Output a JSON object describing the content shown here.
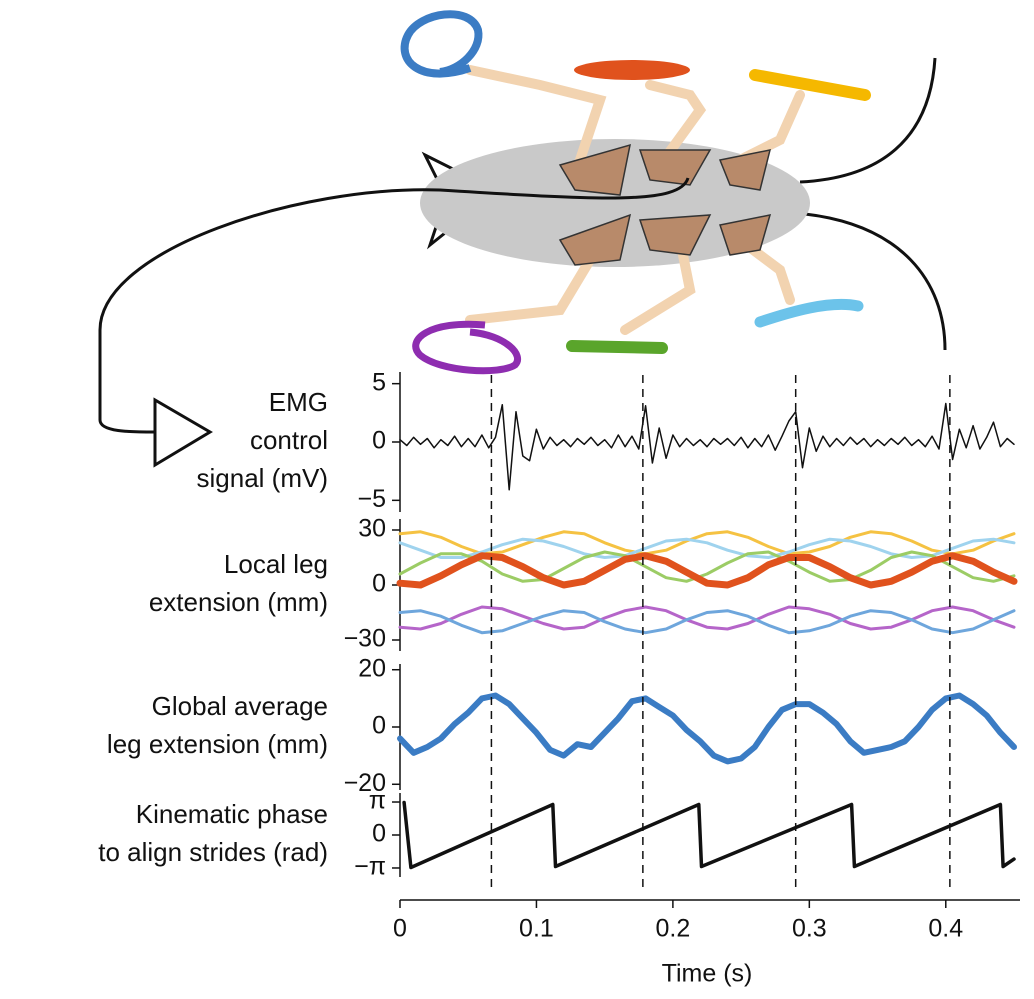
{
  "chart_data": [
    {
      "type": "line",
      "ylabel": [
        "EMG",
        "control",
        "signal (mV)"
      ],
      "xlim": [
        0,
        0.45
      ],
      "ylim": [
        -6,
        6
      ],
      "yticks": [
        5,
        0,
        {
          "value": -5,
          "label": "−5"
        }
      ],
      "x": [
        0,
        0.005,
        0.01,
        0.015,
        0.02,
        0.025,
        0.03,
        0.035,
        0.04,
        0.045,
        0.05,
        0.055,
        0.06,
        0.065,
        0.07,
        0.075,
        0.08,
        0.085,
        0.09,
        0.095,
        0.1,
        0.105,
        0.11,
        0.115,
        0.12,
        0.125,
        0.13,
        0.135,
        0.14,
        0.145,
        0.15,
        0.155,
        0.16,
        0.165,
        0.17,
        0.175,
        0.18,
        0.185,
        0.19,
        0.195,
        0.2,
        0.205,
        0.21,
        0.215,
        0.22,
        0.225,
        0.23,
        0.235,
        0.24,
        0.245,
        0.25,
        0.255,
        0.26,
        0.265,
        0.27,
        0.275,
        0.28,
        0.285,
        0.29,
        0.295,
        0.3,
        0.305,
        0.31,
        0.315,
        0.32,
        0.325,
        0.33,
        0.335,
        0.34,
        0.345,
        0.35,
        0.355,
        0.36,
        0.365,
        0.37,
        0.375,
        0.38,
        0.385,
        0.39,
        0.395,
        0.4,
        0.405,
        0.41,
        0.415,
        0.42,
        0.425,
        0.43,
        0.435,
        0.44,
        0.445,
        0.45
      ],
      "series": [
        {
          "color": "#111111",
          "linewidth": 1.5,
          "values": [
            0.2,
            -0.3,
            0.4,
            -0.2,
            0.3,
            -0.5,
            0.2,
            -0.3,
            0.5,
            -0.4,
            0.3,
            -0.4,
            0.6,
            -0.5,
            0.4,
            3.2,
            -4.1,
            2.6,
            -1.2,
            -1.6,
            1.1,
            -0.6,
            0.4,
            -0.3,
            0.2,
            -0.4,
            0.3,
            -0.2,
            0.4,
            -0.3,
            0.2,
            -0.5,
            0.6,
            -0.4,
            0.5,
            -0.6,
            3.1,
            -1.8,
            1.2,
            -1.4,
            0.6,
            -0.4,
            0.3,
            -0.3,
            0.2,
            -0.4,
            0.3,
            -0.2,
            0.3,
            -0.3,
            0.4,
            -0.5,
            0.3,
            -0.4,
            0.6,
            -0.7,
            0.5,
            1.8,
            2.6,
            -2.2,
            1.2,
            -0.8,
            0.5,
            -0.4,
            0.3,
            -0.3,
            0.4,
            -0.2,
            0.3,
            -0.4,
            0.2,
            -0.3,
            0.3,
            -0.2,
            0.4,
            -0.3,
            0.2,
            -0.4,
            0.5,
            -0.6,
            3.3,
            -1.5,
            1.1,
            -0.5,
            1.4,
            -0.6,
            0.4,
            1.7,
            -0.4,
            0.3,
            -0.2
          ]
        }
      ]
    },
    {
      "type": "line",
      "ylabel": [
        "Local leg",
        "extension (mm)"
      ],
      "xlim": [
        0,
        0.45
      ],
      "ylim": [
        -36,
        36
      ],
      "yticks": [
        30,
        0,
        {
          "value": -30,
          "label": "−30"
        }
      ],
      "x": [
        0,
        0.015,
        0.03,
        0.045,
        0.06,
        0.075,
        0.09,
        0.105,
        0.12,
        0.135,
        0.15,
        0.165,
        0.18,
        0.195,
        0.21,
        0.225,
        0.24,
        0.255,
        0.27,
        0.285,
        0.3,
        0.315,
        0.33,
        0.345,
        0.36,
        0.375,
        0.39,
        0.405,
        0.42,
        0.435,
        0.45
      ],
      "series": [
        {
          "color": "#f5c242",
          "linewidth": 3,
          "values": [
            28,
            29,
            26,
            21,
            17,
            18,
            22,
            26,
            29,
            28,
            23,
            19,
            17,
            19,
            24,
            28,
            29,
            26,
            21,
            17,
            18,
            21,
            26,
            29,
            28,
            24,
            19,
            17,
            19,
            24,
            28
          ]
        },
        {
          "color": "#9fd3ee",
          "linewidth": 3,
          "values": [
            23,
            19,
            15,
            15,
            18,
            22,
            25,
            24,
            21,
            17,
            15,
            16,
            20,
            24,
            25,
            23,
            19,
            16,
            15,
            18,
            22,
            25,
            24,
            21,
            17,
            15,
            16,
            20,
            24,
            25,
            23
          ]
        },
        {
          "color": "#9ccc65",
          "linewidth": 3,
          "values": [
            6,
            12,
            17,
            17,
            13,
            6,
            2,
            3,
            9,
            15,
            18,
            16,
            10,
            4,
            2,
            6,
            12,
            17,
            18,
            13,
            7,
            2,
            3,
            8,
            15,
            18,
            16,
            10,
            4,
            2,
            5
          ]
        },
        {
          "color": "#b565c9",
          "linewidth": 3,
          "values": [
            -23,
            -24,
            -21,
            -16,
            -12,
            -13,
            -17,
            -21,
            -24,
            -23,
            -18,
            -14,
            -12,
            -14,
            -19,
            -23,
            -24,
            -21,
            -16,
            -12,
            -13,
            -16,
            -21,
            -24,
            -23,
            -19,
            -14,
            -12,
            -14,
            -19,
            -23
          ]
        },
        {
          "color": "#6ea6dc",
          "linewidth": 3,
          "values": [
            -15,
            -14,
            -17,
            -22,
            -26,
            -25,
            -21,
            -17,
            -14,
            -15,
            -20,
            -24,
            -26,
            -24,
            -19,
            -15,
            -14,
            -17,
            -22,
            -26,
            -25,
            -22,
            -17,
            -14,
            -15,
            -19,
            -24,
            -26,
            -24,
            -19,
            -14
          ]
        },
        {
          "color": "#e0521d",
          "linewidth": 7,
          "values": [
            1,
            0,
            5,
            11,
            16,
            15,
            10,
            4,
            0,
            2,
            8,
            14,
            16,
            13,
            7,
            1,
            0,
            4,
            11,
            15,
            15,
            10,
            4,
            0,
            2,
            7,
            13,
            16,
            13,
            7,
            2
          ]
        }
      ]
    },
    {
      "type": "line",
      "ylabel": [
        "Global average",
        "leg extension (mm)"
      ],
      "xlim": [
        0,
        0.45
      ],
      "ylim": [
        -22,
        22
      ],
      "yticks": [
        20,
        0,
        {
          "value": -20,
          "label": "−20"
        }
      ],
      "x": [
        0,
        0.01,
        0.02,
        0.03,
        0.04,
        0.05,
        0.06,
        0.07,
        0.08,
        0.09,
        0.1,
        0.11,
        0.12,
        0.13,
        0.14,
        0.15,
        0.16,
        0.17,
        0.18,
        0.19,
        0.2,
        0.21,
        0.22,
        0.23,
        0.24,
        0.25,
        0.26,
        0.27,
        0.28,
        0.29,
        0.3,
        0.31,
        0.32,
        0.33,
        0.34,
        0.35,
        0.36,
        0.37,
        0.38,
        0.39,
        0.4,
        0.41,
        0.42,
        0.43,
        0.44,
        0.45
      ],
      "series": [
        {
          "color": "#3b7cc4",
          "linewidth": 6,
          "values": [
            -4,
            -9,
            -7,
            -4,
            1,
            5,
            10,
            11,
            8,
            3,
            -2,
            -8,
            -10,
            -6,
            -7,
            -2,
            3,
            9,
            10,
            7,
            4,
            -1,
            -5,
            -10,
            -12,
            -11,
            -7,
            0,
            6,
            8,
            8,
            5,
            1,
            -5,
            -9,
            -8,
            -7,
            -5,
            0,
            6,
            10,
            11,
            8,
            4,
            -2,
            -7
          ]
        }
      ]
    },
    {
      "type": "line",
      "ylabel": [
        "Kinematic phase",
        "to align strides (rad)"
      ],
      "xlim": [
        0,
        0.45
      ],
      "ylim": [
        -4,
        4
      ],
      "yticks": [
        {
          "value": 3.14159,
          "label": "π"
        },
        0,
        {
          "value": -3.14159,
          "label": "−π"
        }
      ],
      "xticks": [
        0,
        0.1,
        0.2,
        0.3,
        0.4
      ],
      "xlabel": "Time (s)",
      "vlines": [
        0.067,
        0.178,
        0.29,
        0.403
      ],
      "x": [
        0.003,
        0.008,
        0.112,
        0.114,
        0.219,
        0.221,
        0.331,
        0.333,
        0.44,
        0.442,
        0.45
      ],
      "series": [
        {
          "color": "#111111",
          "linewidth": 3.5,
          "values": [
            3.1,
            -3.1,
            2.9,
            -3.0,
            2.9,
            -3.0,
            2.9,
            -3.0,
            2.9,
            -3.0,
            -2.3
          ]
        }
      ]
    }
  ]
}
